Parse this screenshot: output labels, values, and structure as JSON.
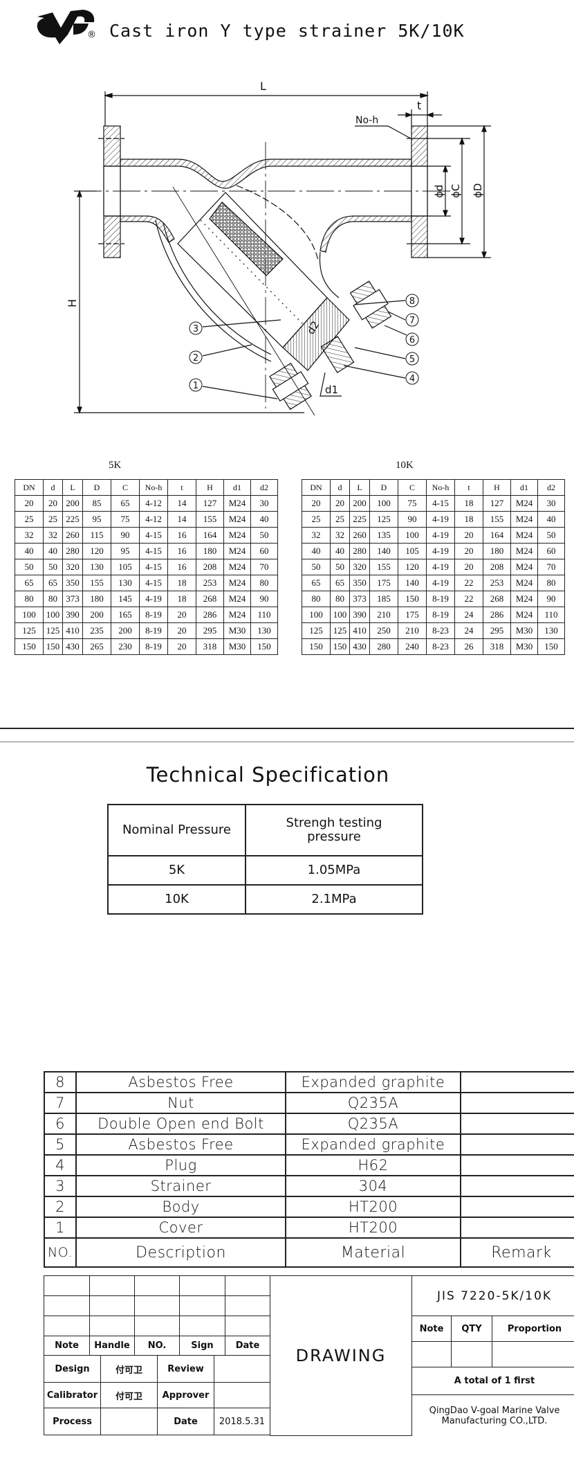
{
  "header": {
    "title": "Cast iron Y type strainer 5K/10K",
    "logo_text": "VG",
    "registered_mark": "®"
  },
  "drawing": {
    "labels": {
      "L": "L",
      "t": "t",
      "no_h": "No-h",
      "d": "ϕd",
      "C": "ϕC",
      "D": "ϕD",
      "H": "H",
      "d1": "d1",
      "d2": "d2"
    },
    "balloons": [
      "1",
      "2",
      "3",
      "4",
      "5",
      "6",
      "7",
      "8"
    ]
  },
  "dimension_tables": [
    {
      "title": "5K",
      "columns": [
        "DN",
        "d",
        "L",
        "D",
        "C",
        "No-h",
        "t",
        "H",
        "d1",
        "d2"
      ],
      "rows": [
        [
          "20",
          "20",
          "200",
          "85",
          "65",
          "4-12",
          "14",
          "127",
          "M24",
          "30"
        ],
        [
          "25",
          "25",
          "225",
          "95",
          "75",
          "4-12",
          "14",
          "155",
          "M24",
          "40"
        ],
        [
          "32",
          "32",
          "260",
          "115",
          "90",
          "4-15",
          "16",
          "164",
          "M24",
          "50"
        ],
        [
          "40",
          "40",
          "280",
          "120",
          "95",
          "4-15",
          "16",
          "180",
          "M24",
          "60"
        ],
        [
          "50",
          "50",
          "320",
          "130",
          "105",
          "4-15",
          "16",
          "208",
          "M24",
          "70"
        ],
        [
          "65",
          "65",
          "350",
          "155",
          "130",
          "4-15",
          "18",
          "253",
          "M24",
          "80"
        ],
        [
          "80",
          "80",
          "373",
          "180",
          "145",
          "4-19",
          "18",
          "268",
          "M24",
          "90"
        ],
        [
          "100",
          "100",
          "390",
          "200",
          "165",
          "8-19",
          "20",
          "286",
          "M24",
          "110"
        ],
        [
          "125",
          "125",
          "410",
          "235",
          "200",
          "8-19",
          "20",
          "295",
          "M30",
          "130"
        ],
        [
          "150",
          "150",
          "430",
          "265",
          "230",
          "8-19",
          "20",
          "318",
          "M30",
          "150"
        ]
      ]
    },
    {
      "title": "10K",
      "columns": [
        "DN",
        "d",
        "L",
        "D",
        "C",
        "No-h",
        "t",
        "H",
        "d1",
        "d2"
      ],
      "rows": [
        [
          "20",
          "20",
          "200",
          "100",
          "75",
          "4-15",
          "18",
          "127",
          "M24",
          "30"
        ],
        [
          "25",
          "25",
          "225",
          "125",
          "90",
          "4-19",
          "18",
          "155",
          "M24",
          "40"
        ],
        [
          "32",
          "32",
          "260",
          "135",
          "100",
          "4-19",
          "20",
          "164",
          "M24",
          "50"
        ],
        [
          "40",
          "40",
          "280",
          "140",
          "105",
          "4-19",
          "20",
          "180",
          "M24",
          "60"
        ],
        [
          "50",
          "50",
          "320",
          "155",
          "120",
          "4-19",
          "20",
          "208",
          "M24",
          "70"
        ],
        [
          "65",
          "65",
          "350",
          "175",
          "140",
          "4-19",
          "22",
          "253",
          "M24",
          "80"
        ],
        [
          "80",
          "80",
          "373",
          "185",
          "150",
          "8-19",
          "22",
          "268",
          "M24",
          "90"
        ],
        [
          "100",
          "100",
          "390",
          "210",
          "175",
          "8-19",
          "24",
          "286",
          "M24",
          "110"
        ],
        [
          "125",
          "125",
          "410",
          "250",
          "210",
          "8-23",
          "24",
          "295",
          "M30",
          "130"
        ],
        [
          "150",
          "150",
          "430",
          "280",
          "240",
          "8-23",
          "26",
          "318",
          "M30",
          "150"
        ]
      ]
    }
  ],
  "tech_spec": {
    "title": "Technical Specification",
    "headers": [
      "Nominal Pressure",
      "Strengh testing pressure"
    ],
    "rows": [
      [
        "5K",
        "1.05MPa"
      ],
      [
        "10K",
        "2.1MPa"
      ]
    ]
  },
  "parts_list": {
    "headers": [
      "NO.",
      "Description",
      "Material",
      "Remark"
    ],
    "rows": [
      [
        "8",
        "Asbestos Free",
        "Expanded graphite",
        ""
      ],
      [
        "7",
        "Nut",
        "Q235A",
        ""
      ],
      [
        "6",
        "Double Open end Bolt",
        "Q235A",
        ""
      ],
      [
        "5",
        "Asbestos Free",
        "Expanded graphite",
        ""
      ],
      [
        "4",
        "Plug",
        "H62",
        ""
      ],
      [
        "3",
        "Strainer",
        "304",
        ""
      ],
      [
        "2",
        "Body",
        "HT200",
        ""
      ],
      [
        "1",
        "Cover",
        "HT200",
        ""
      ]
    ]
  },
  "title_block": {
    "revision_headers": [
      "Note",
      "Handle",
      "NO.",
      "Sign",
      "Date"
    ],
    "design_label": "Design",
    "design_value": "付可卫",
    "review_label": "Review",
    "calibrator_label": "Calibrator",
    "calibrator_value": "付可卫",
    "approver_label": "Approver",
    "process_label": "Process",
    "date_label": "Date",
    "date_value": "2018.5.31",
    "drawing_label": "DRAWING",
    "standard": "JIS 7220-5K/10K",
    "info_headers": [
      "Note",
      "QTY",
      "Proportion"
    ],
    "sheet_total": "A total of 1 first",
    "company_line1": "QingDao V-goal Marine Valve",
    "company_line2": "Manufacturing CO.,LTD."
  }
}
